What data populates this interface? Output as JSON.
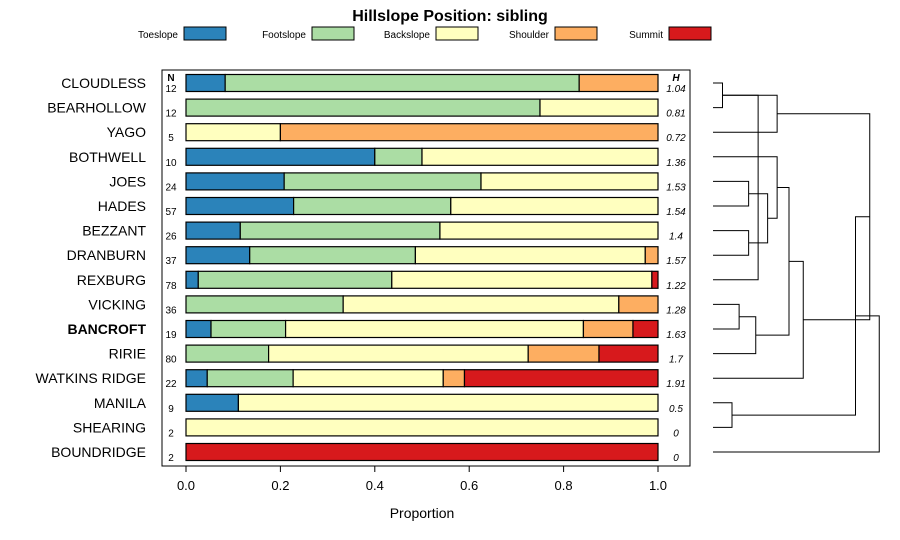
{
  "chart_data": {
    "type": "bar",
    "orientation": "horizontal",
    "stacked": true,
    "title": "Hillslope Position: sibling",
    "xlabel": "Proportion",
    "xlim": [
      0,
      1
    ],
    "x_ticks": [
      "0.0",
      "0.2",
      "0.4",
      "0.6",
      "0.8",
      "1.0"
    ],
    "x_tick_values": [
      0,
      0.2,
      0.4,
      0.6,
      0.8,
      1.0
    ],
    "legend_position": "top",
    "n_header": "N",
    "h_header": "H",
    "highlighted_category": "BANCROFT",
    "series": [
      {
        "name": "Toeslope",
        "color": "#2b83ba"
      },
      {
        "name": "Footslope",
        "color": "#abdda4"
      },
      {
        "name": "Backslope",
        "color": "#ffffbf"
      },
      {
        "name": "Shoulder",
        "color": "#fdae61"
      },
      {
        "name": "Summit",
        "color": "#d7191c"
      }
    ],
    "categories": [
      {
        "label": "CLOUDLESS",
        "n": "12",
        "h": "1.04",
        "values": [
          0.083,
          0.75,
          0,
          0.167,
          0
        ]
      },
      {
        "label": "BEARHOLLOW",
        "n": "12",
        "h": "0.81",
        "values": [
          0,
          0.75,
          0.25,
          0,
          0
        ]
      },
      {
        "label": "YAGO",
        "n": "5",
        "h": "0.72",
        "values": [
          0,
          0,
          0.2,
          0.8,
          0
        ]
      },
      {
        "label": "BOTHWELL",
        "n": "10",
        "h": "1.36",
        "values": [
          0.4,
          0.1,
          0.5,
          0,
          0
        ]
      },
      {
        "label": "JOES",
        "n": "24",
        "h": "1.53",
        "values": [
          0.208,
          0.417,
          0.375,
          0,
          0
        ]
      },
      {
        "label": "HADES",
        "n": "57",
        "h": "1.54",
        "values": [
          0.228,
          0.333,
          0.439,
          0,
          0
        ]
      },
      {
        "label": "BEZZANT",
        "n": "26",
        "h": "1.4",
        "values": [
          0.115,
          0.423,
          0.462,
          0,
          0
        ]
      },
      {
        "label": "DRANBURN",
        "n": "37",
        "h": "1.57",
        "values": [
          0.135,
          0.351,
          0.487,
          0.027,
          0
        ]
      },
      {
        "label": "REXBURG",
        "n": "78",
        "h": "1.22",
        "values": [
          0.026,
          0.41,
          0.551,
          0,
          0.013
        ]
      },
      {
        "label": "VICKING",
        "n": "36",
        "h": "1.28",
        "values": [
          0,
          0.333,
          0.584,
          0.083,
          0
        ]
      },
      {
        "label": "BANCROFT",
        "n": "19",
        "h": "1.63",
        "values": [
          0.053,
          0.158,
          0.631,
          0.105,
          0.053
        ]
      },
      {
        "label": "RIRIE",
        "n": "80",
        "h": "1.7",
        "values": [
          0,
          0.175,
          0.55,
          0.15,
          0.125
        ]
      },
      {
        "label": "WATKINS RIDGE",
        "n": "22",
        "h": "1.91",
        "values": [
          0.045,
          0.182,
          0.318,
          0.045,
          0.41
        ]
      },
      {
        "label": "MANILA",
        "n": "9",
        "h": "0.5",
        "values": [
          0.111,
          0,
          0.889,
          0,
          0
        ]
      },
      {
        "label": "SHEARING",
        "n": "2",
        "h": "0",
        "values": [
          0,
          0,
          1,
          0,
          0
        ]
      },
      {
        "label": "BOUNDRIDGE",
        "n": "2",
        "h": "0",
        "values": [
          0,
          0,
          0,
          0,
          1
        ]
      }
    ],
    "dendrogram": [
      {
        "left": 0,
        "right": 1
      },
      {
        "left": 13,
        "right": 14
      },
      {
        "left": 9,
        "right": 10
      },
      {
        "left": 4,
        "right": 5
      },
      {
        "left": 6,
        "right": 7
      },
      {
        "left": -1,
        "right": 8
      },
      {
        "left": -4,
        "right": -5
      },
      {
        "left": 11,
        "right": -3
      },
      {
        "left": 3,
        "right": -7
      },
      {
        "left": -9,
        "right": -8
      },
      {
        "left": -1,
        "right": 2
      },
      {
        "left": -10,
        "right": 12
      },
      {
        "left": -11,
        "right": -12
      },
      {
        "left": -2,
        "right": -13
      },
      {
        "left": -14,
        "right": 15
      }
    ],
    "dendrogram_heights": [
      0.2,
      0.4,
      0.55,
      0.75,
      0.75,
      0.95,
      1.15,
      0.9,
      1.35,
      1.6,
      1.35,
      1.9,
      3.3,
      3.0,
      3.5
    ]
  }
}
